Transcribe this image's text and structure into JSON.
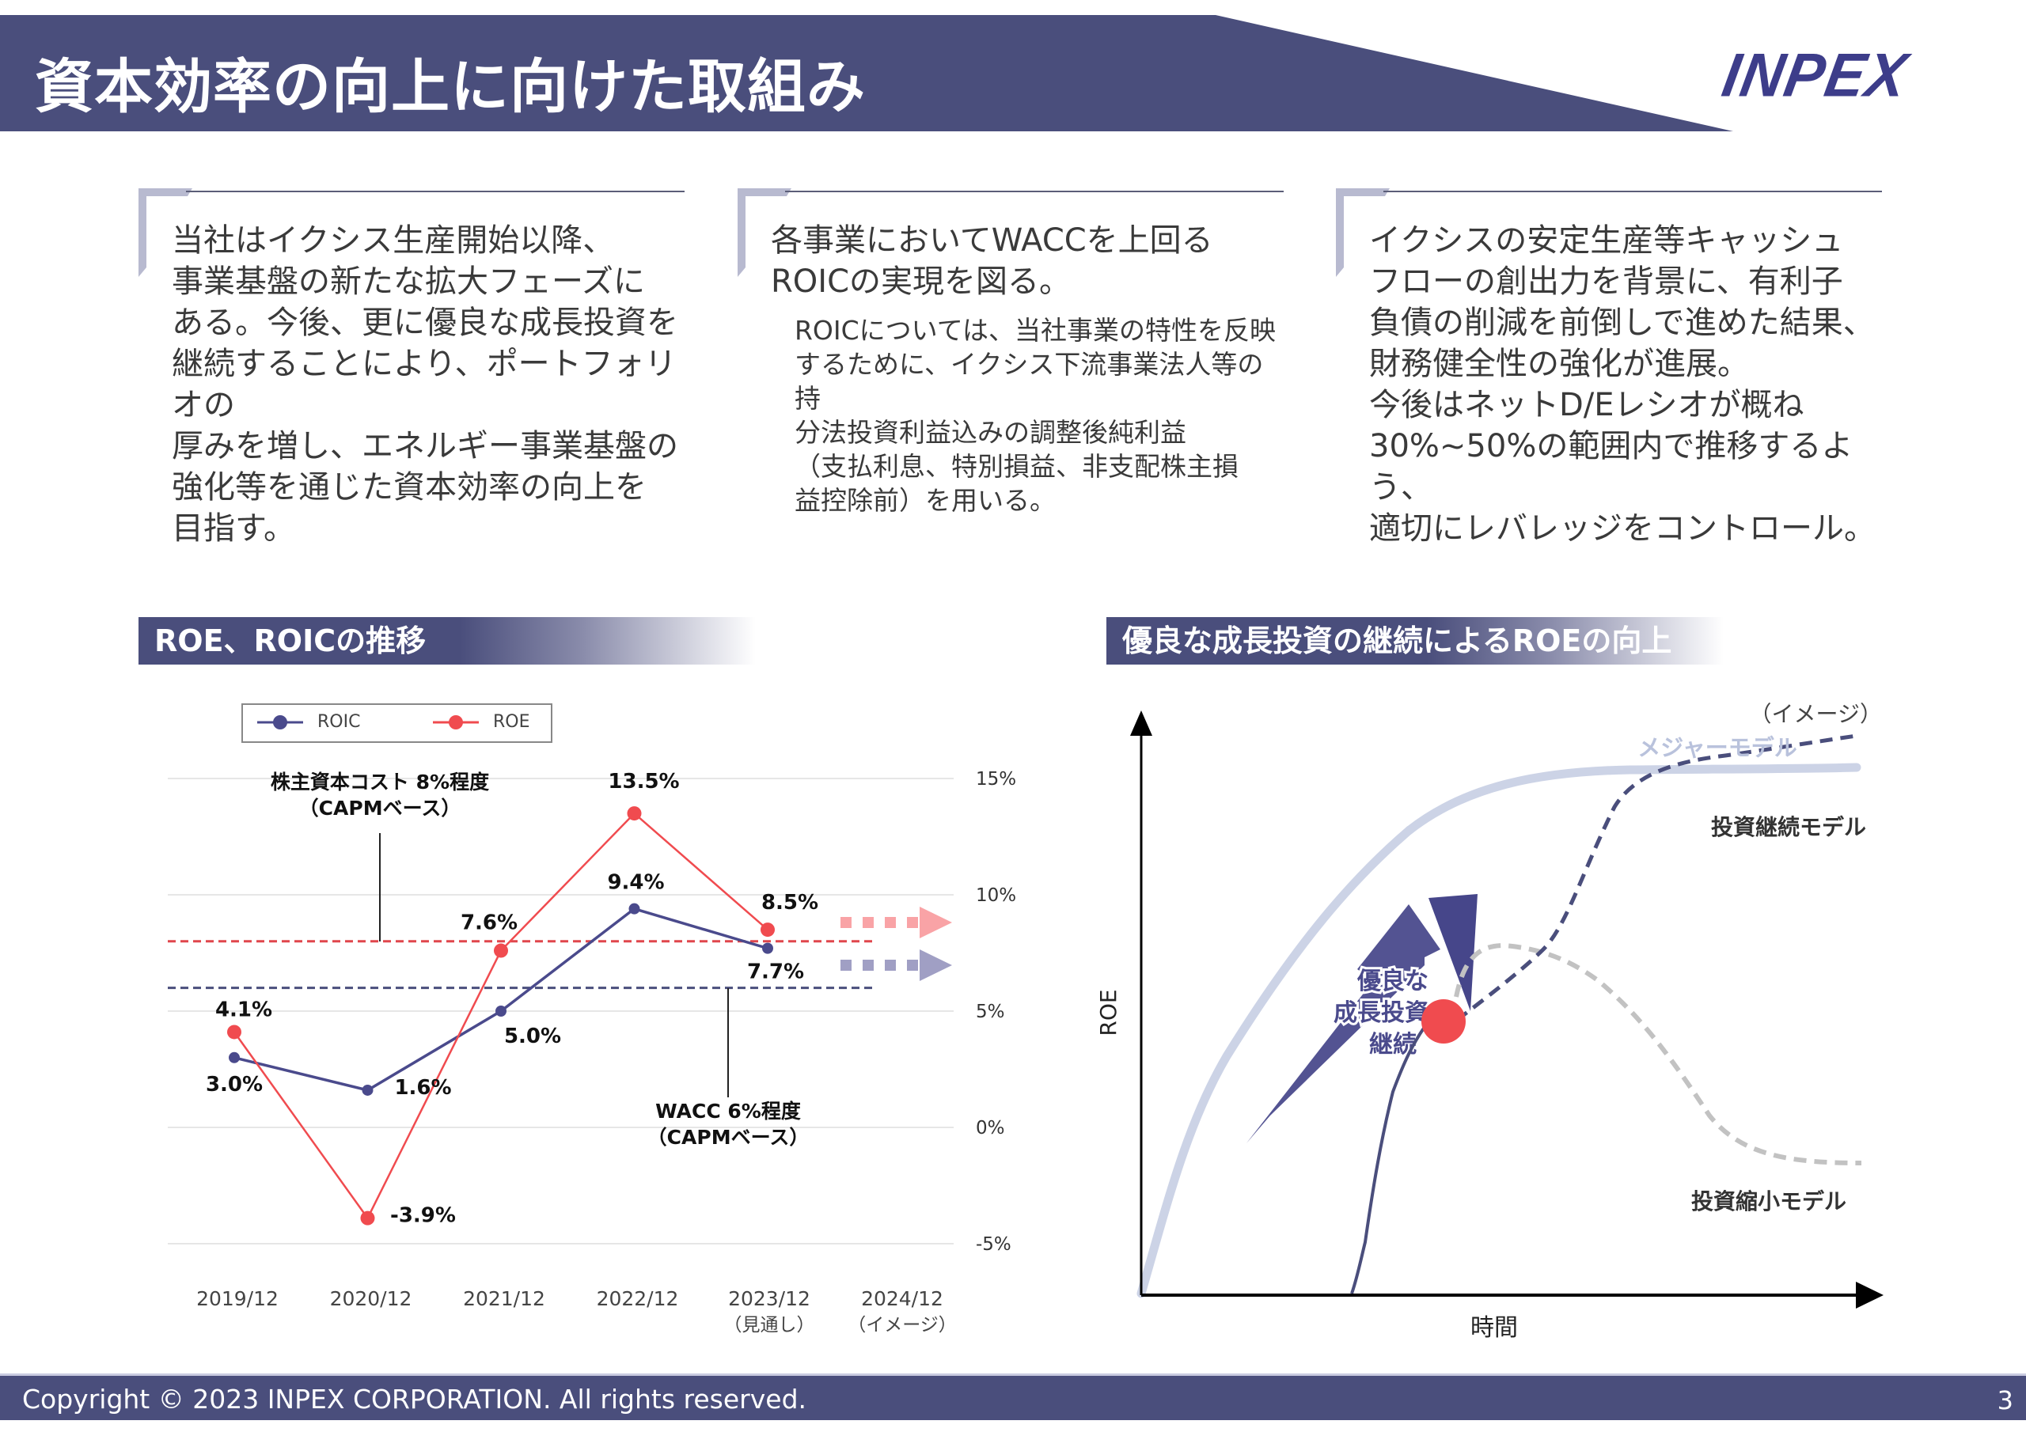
{
  "header": {
    "title": "資本効率の向上に向けた取組み",
    "logo": "INPEX",
    "colors": {
      "bar": "#4a4e7c",
      "logo": "#3d3d8a"
    }
  },
  "messages": [
    {
      "main": "当社はイクシス生産開始以降、\n事業基盤の新たな拡大フェーズに\nある。今後、更に優良な成長投資を\n継続することにより、ポートフォリオの\n厚みを増し、エネルギー事業基盤の\n強化等を通じた資本効率の向上を\n目指す。",
      "sub": ""
    },
    {
      "main": "各事業においてWACCを上回る\nROICの実現を図る。",
      "sub": "ROICについては、当社事業の特性を反映\nするために、イクシス下流事業法人等の持\n分法投資利益込みの調整後純利益\n（支払利息、特別損益、非支配株主損\n益控除前）を用いる。"
    },
    {
      "main": "イクシスの安定生産等キャッシュ\nフローの創出力を背景に、有利子\n負債の削減を前倒しで進めた結果、\n財務健全性の強化が進展。\n今後はネットD/Eレシオが概ね\n30%~50%の範囲内で推移するよう、\n適切にレバレッジをコントロール。",
      "sub": ""
    }
  ],
  "sections": {
    "left_title": "ROE、ROICの推移",
    "right_title": "優良な成長投資の継続によるROEの向上"
  },
  "chart_data": [
    {
      "type": "line",
      "title": "ROE、ROICの推移",
      "categories": [
        "2019/12",
        "2020/12",
        "2021/12",
        "2022/12",
        "2023/12",
        "2024/12"
      ],
      "category_notes": [
        "",
        "",
        "",
        "",
        "（見通し）",
        "（イメージ）"
      ],
      "series": [
        {
          "name": "ROIC",
          "color": "#4a4a8c",
          "values": [
            3.0,
            1.6,
            5.0,
            9.4,
            7.7,
            null
          ],
          "labels": [
            "3.0%",
            "1.6%",
            "5.0%",
            "9.4%",
            "7.7%",
            ""
          ]
        },
        {
          "name": "ROE",
          "color": "#f04b4f",
          "values": [
            4.1,
            -3.9,
            7.6,
            13.5,
            8.5,
            null
          ],
          "labels": [
            "4.1%",
            "-3.9%",
            "7.6%",
            "13.5%",
            "8.5%",
            ""
          ]
        }
      ],
      "reference_lines": [
        {
          "name": "株主資本コスト",
          "value": 8,
          "color": "#e0464c",
          "label_line1": "株主資本コスト 8%程度",
          "label_line2": "（CAPMベース）"
        },
        {
          "name": "WACC",
          "value": 6,
          "color": "#4a4e7c",
          "label_line1": "WACC 6%程度",
          "label_line2": "（CAPMベース）"
        }
      ],
      "yticks": [
        15,
        10,
        5,
        0,
        -5
      ],
      "ytick_labels": [
        "15%",
        "10%",
        "5%",
        "0%",
        "-5%"
      ],
      "ylim": [
        -5,
        15
      ],
      "grid": true,
      "legend": {
        "position": "top-left",
        "entries": [
          "ROIC",
          "ROE"
        ]
      },
      "xlabel": "",
      "ylabel": ""
    },
    {
      "type": "line",
      "title": "優良な成長投資の継続によるROEの向上",
      "note": "（イメージ）",
      "xlabel": "時間",
      "ylabel": "ROE",
      "series": [
        {
          "name": "メジャーモデル",
          "style": "solid-light",
          "color": "#ccd3e6"
        },
        {
          "name": "投資継続モデル",
          "style": "dashed",
          "color": "#4a4e7c"
        },
        {
          "name": "投資縮小モデル",
          "style": "dashed-gray",
          "color": "#c0c0c0"
        }
      ],
      "arrow_label": [
        "優良な",
        "成長投資の",
        "継続"
      ],
      "marker_color": "#f04b4f"
    }
  ],
  "footer": {
    "copyright": "Copyright © 2023 INPEX CORPORATION. All rights reserved.",
    "page": "3"
  }
}
